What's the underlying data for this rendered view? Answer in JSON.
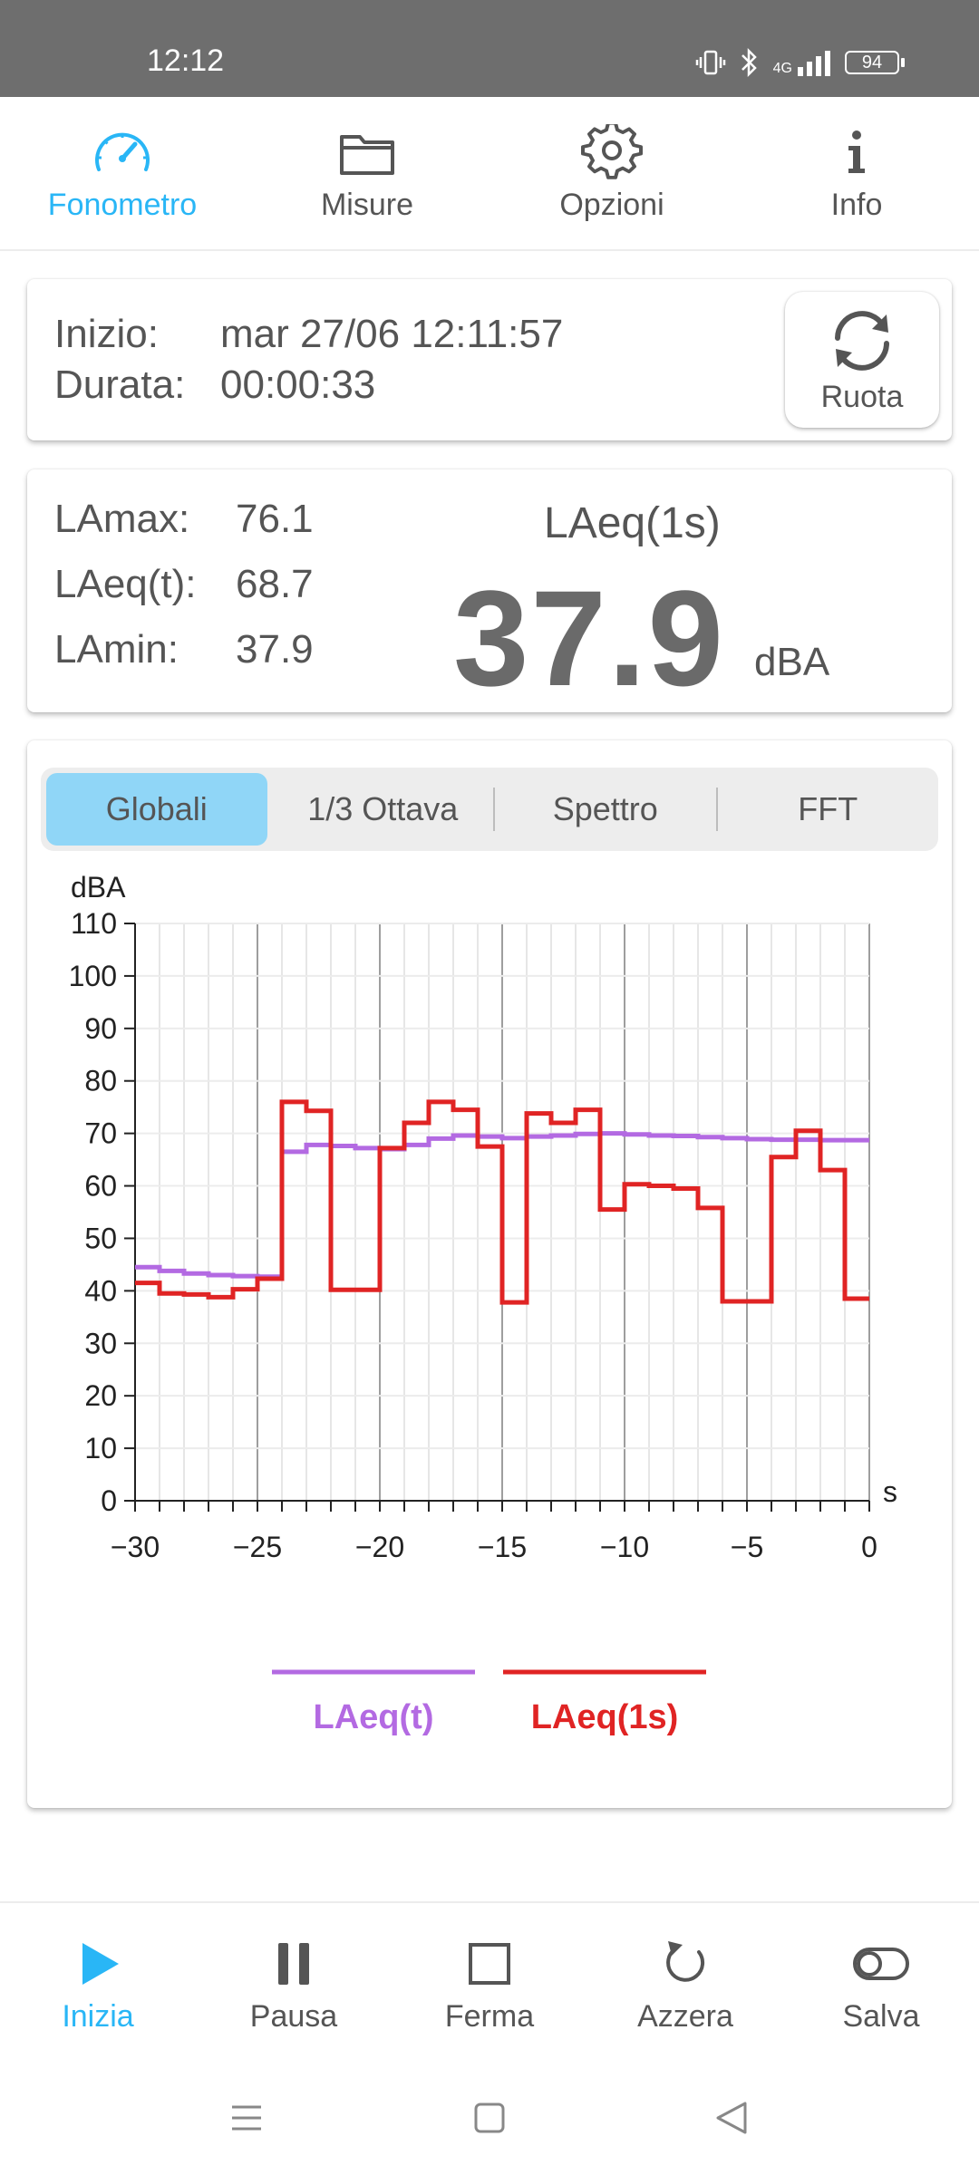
{
  "status_bar": {
    "time": "12:12",
    "network": "4G",
    "battery": "94"
  },
  "top_tabs": [
    {
      "label": "Fonometro",
      "icon": "speedometer-icon",
      "active": true
    },
    {
      "label": "Misure",
      "icon": "folder-icon",
      "active": false
    },
    {
      "label": "Opzioni",
      "icon": "gear-icon",
      "active": false
    },
    {
      "label": "Info",
      "icon": "info-icon",
      "active": false
    }
  ],
  "session": {
    "start_label": "Inizio:",
    "start_value": "mar 27/06 12:11:57",
    "duration_label": "Durata:",
    "duration_value": "00:00:33",
    "rotate_label": "Ruota"
  },
  "levels": {
    "lamax_label": "LAmax:",
    "lamax_value": "76.1",
    "laeqt_label": "LAeq(t):",
    "laeqt_value": "68.7",
    "lamin_label": "LAmin:",
    "lamin_value": "37.9",
    "main_label": "LAeq(1s)",
    "main_value": "37.9",
    "unit": "dBA"
  },
  "segments": [
    {
      "label": "Globali",
      "active": true
    },
    {
      "label": "1/3 Ottava",
      "active": false
    },
    {
      "label": "Spettro",
      "active": false
    },
    {
      "label": "FFT",
      "active": false
    }
  ],
  "chart_data": {
    "type": "line",
    "ylabel": "dBA",
    "xlabel": "s",
    "xlim": [
      -30,
      0
    ],
    "ylim": [
      0,
      110
    ],
    "x_ticks": [
      "−30",
      "−25",
      "−20",
      "−15",
      "−10",
      "−5",
      "0"
    ],
    "y_ticks": [
      "0",
      "10",
      "20",
      "30",
      "40",
      "50",
      "60",
      "70",
      "80",
      "90",
      "100",
      "110"
    ],
    "grid": true,
    "legend_position": "bottom",
    "series": [
      {
        "name": "LAeq(t)",
        "color": "#b36ae2",
        "step": true,
        "x": [
          -30,
          -29,
          -28,
          -27,
          -26,
          -25,
          -24,
          -23,
          -22,
          -21,
          -20,
          -19,
          -18,
          -17,
          -16,
          -15,
          -14,
          -13,
          -12,
          -11,
          -10,
          -9,
          -8,
          -7,
          -6,
          -5,
          -4,
          -3,
          -2,
          -1
        ],
        "values": [
          44.5,
          43.8,
          43.3,
          43.0,
          42.8,
          42.7,
          66.5,
          67.8,
          67.6,
          67.2,
          67.0,
          67.8,
          69.0,
          69.6,
          69.4,
          69.1,
          69.4,
          69.6,
          69.9,
          70.0,
          69.8,
          69.6,
          69.5,
          69.3,
          69.1,
          68.9,
          68.8,
          68.8,
          68.7,
          68.7
        ]
      },
      {
        "name": "LAeq(1s)",
        "color": "#e02424",
        "step": true,
        "x": [
          -30,
          -29,
          -28,
          -27,
          -26,
          -25,
          -24,
          -23,
          -22,
          -21,
          -20,
          -19,
          -18,
          -17,
          -16,
          -15,
          -14,
          -13,
          -12,
          -11,
          -10,
          -9,
          -8,
          -7,
          -6,
          -5,
          -4,
          -3,
          -2,
          -1
        ],
        "values": [
          41.5,
          39.5,
          39.3,
          38.8,
          40.3,
          42.3,
          76.0,
          74.3,
          40.2,
          40.2,
          67.2,
          72.0,
          76.0,
          74.5,
          67.5,
          37.8,
          73.8,
          72.0,
          74.5,
          55.5,
          60.3,
          60.0,
          59.5,
          55.8,
          38.0,
          38.0,
          65.5,
          70.5,
          63.0,
          38.5
        ]
      }
    ]
  },
  "bottom_nav": [
    {
      "label": "Inizia",
      "icon": "play-icon",
      "active": true
    },
    {
      "label": "Pausa",
      "icon": "pause-icon",
      "active": false
    },
    {
      "label": "Ferma",
      "icon": "stop-icon",
      "active": false
    },
    {
      "label": "Azzera",
      "icon": "reset-icon",
      "active": false
    },
    {
      "label": "Salva",
      "icon": "toggle-icon",
      "active": false
    }
  ]
}
